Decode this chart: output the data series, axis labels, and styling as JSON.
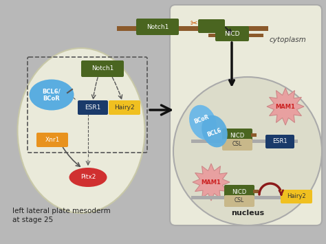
{
  "bg_color": "#b8b8b8",
  "cell_bg": "#eaeada",
  "dark_green": "#4a6520",
  "blue_oval": "#5aade0",
  "orange_box": "#e8921e",
  "dark_blue_box": "#1a3a6a",
  "yellow_box": "#f0c020",
  "red_oval": "#d03030",
  "tan_box": "#c8b88a",
  "pink_burst": "#e8a0a0",
  "dark_red_arrow": "#8b1a1a",
  "brown_bar": "#8b5a2b",
  "title_text": "left lateral plate mesoderm\nat stage 25",
  "cytoplasm_label": "cytoplasm",
  "nucleus_label": "nucleus"
}
